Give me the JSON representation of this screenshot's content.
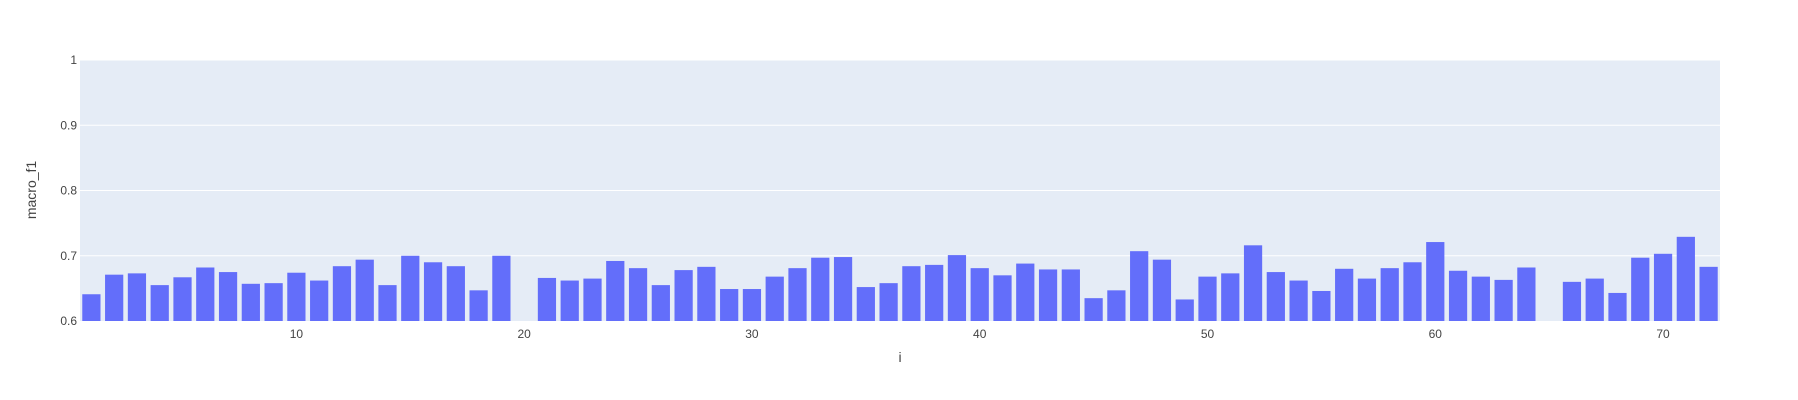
{
  "chart_data": {
    "type": "bar",
    "xlabel": "i",
    "ylabel": "macro_f1",
    "xlim": [
      0.5,
      72.5
    ],
    "ylim": [
      0.6,
      1.0
    ],
    "x_ticks": [
      10,
      20,
      30,
      40,
      50,
      60,
      70
    ],
    "y_ticks": [
      0.6,
      0.7,
      0.8,
      0.9,
      1.0
    ],
    "x_tick_labels": [
      "10",
      "20",
      "30",
      "40",
      "50",
      "60",
      "70"
    ],
    "y_tick_labels": [
      "0.6",
      "0.7",
      "0.8",
      "0.9",
      "1"
    ],
    "grid": true,
    "colors": {
      "bar": "#636efa",
      "plot_bg": "#e5ecf6",
      "grid": "#ffffff",
      "text": "#444444"
    },
    "x": [
      1,
      2,
      3,
      4,
      5,
      6,
      7,
      8,
      9,
      10,
      11,
      12,
      13,
      14,
      15,
      16,
      17,
      18,
      19,
      20,
      21,
      22,
      23,
      24,
      25,
      26,
      27,
      28,
      29,
      30,
      31,
      32,
      33,
      34,
      35,
      36,
      37,
      38,
      39,
      40,
      41,
      42,
      43,
      44,
      45,
      46,
      47,
      48,
      49,
      50,
      51,
      52,
      53,
      54,
      55,
      56,
      57,
      58,
      59,
      60,
      61,
      62,
      63,
      64,
      65,
      66,
      67,
      68,
      69,
      70,
      71,
      72
    ],
    "values": [
      0.641,
      0.671,
      0.673,
      0.655,
      0.667,
      0.682,
      0.675,
      0.657,
      0.658,
      0.674,
      0.662,
      0.684,
      0.694,
      0.655,
      0.7,
      0.69,
      0.684,
      0.647,
      0.7,
      null,
      0.666,
      0.662,
      0.665,
      0.692,
      0.681,
      0.655,
      0.678,
      0.683,
      0.649,
      0.649,
      0.668,
      0.681,
      0.697,
      0.698,
      0.652,
      0.658,
      0.684,
      0.686,
      0.701,
      0.681,
      0.67,
      0.688,
      0.679,
      0.679,
      0.635,
      0.647,
      0.707,
      0.694,
      0.633,
      0.668,
      0.673,
      0.716,
      0.675,
      0.662,
      0.646,
      0.68,
      0.665,
      0.681,
      0.69,
      0.721,
      0.677,
      0.668,
      0.663,
      0.682,
      null,
      0.66,
      0.665,
      0.643,
      0.697,
      0.703,
      0.729,
      0.683
    ]
  }
}
